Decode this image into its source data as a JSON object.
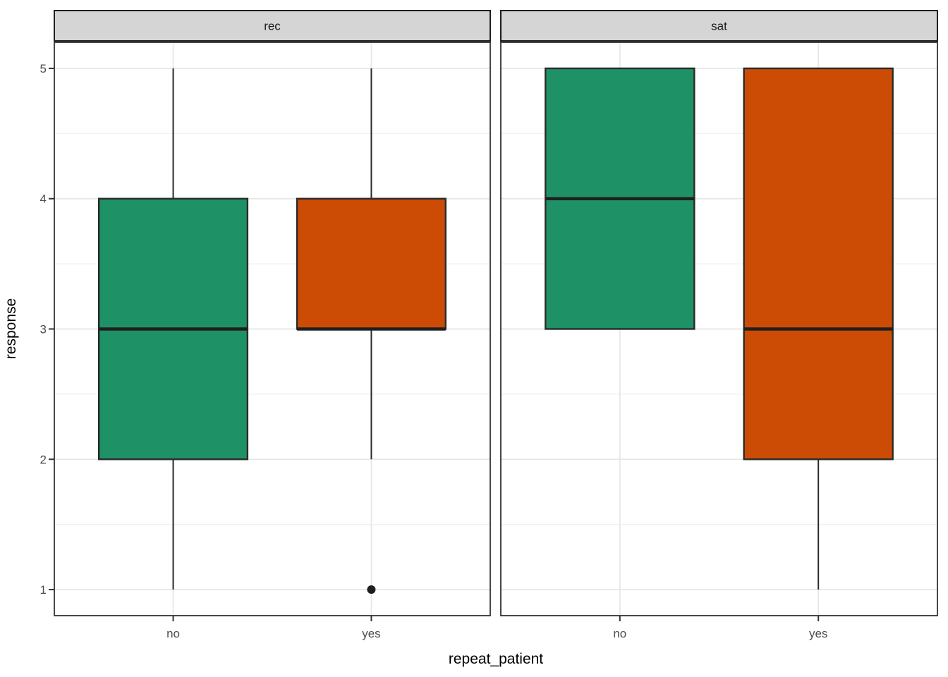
{
  "chart_data": {
    "type": "boxplot",
    "title": "",
    "xlabel": "repeat_patient",
    "ylabel": "response",
    "x_categories": [
      "no",
      "yes"
    ],
    "y_ticks": [
      1,
      2,
      3,
      4,
      5
    ],
    "y_minor_ticks": [
      1.5,
      2.5,
      3.5,
      4.5
    ],
    "ylim": [
      0.8,
      5.2
    ],
    "grid": true,
    "legend": "none",
    "facets": [
      {
        "label": "rec",
        "boxes": [
          {
            "category": "no",
            "color_key": "green",
            "whisker_low": 1,
            "q1": 2,
            "median": 3,
            "q3": 4,
            "whisker_high": 5,
            "outliers": []
          },
          {
            "category": "yes",
            "color_key": "orange",
            "whisker_low": 2,
            "q1": 3,
            "median": 3,
            "q3": 4,
            "whisker_high": 5,
            "outliers": [
              1
            ]
          }
        ]
      },
      {
        "label": "sat",
        "boxes": [
          {
            "category": "no",
            "color_key": "green",
            "whisker_low": 3,
            "q1": 3,
            "median": 4,
            "q3": 5,
            "whisker_high": 5,
            "outliers": []
          },
          {
            "category": "yes",
            "color_key": "orange",
            "whisker_low": 1,
            "q1": 2,
            "median": 3,
            "q3": 5,
            "whisker_high": 5,
            "outliers": []
          }
        ]
      }
    ],
    "colors": {
      "green": "#1e9266",
      "orange": "#cc4c06",
      "box_border": "#2a2a2a",
      "median_line": "#1f1f1f",
      "whisker": "#2a2a2a",
      "outlier": "#1f1f1f",
      "strip_bg": "#d5d5d5",
      "strip_border": "#1f1f1f",
      "panel_border": "#333333",
      "grid_major": "#e6e6e6",
      "grid_minor": "#f0f0f0",
      "tick_mark": "#333333",
      "axis_text": "#4d4d4d",
      "title_text": "#000000",
      "background": "#ffffff"
    }
  }
}
